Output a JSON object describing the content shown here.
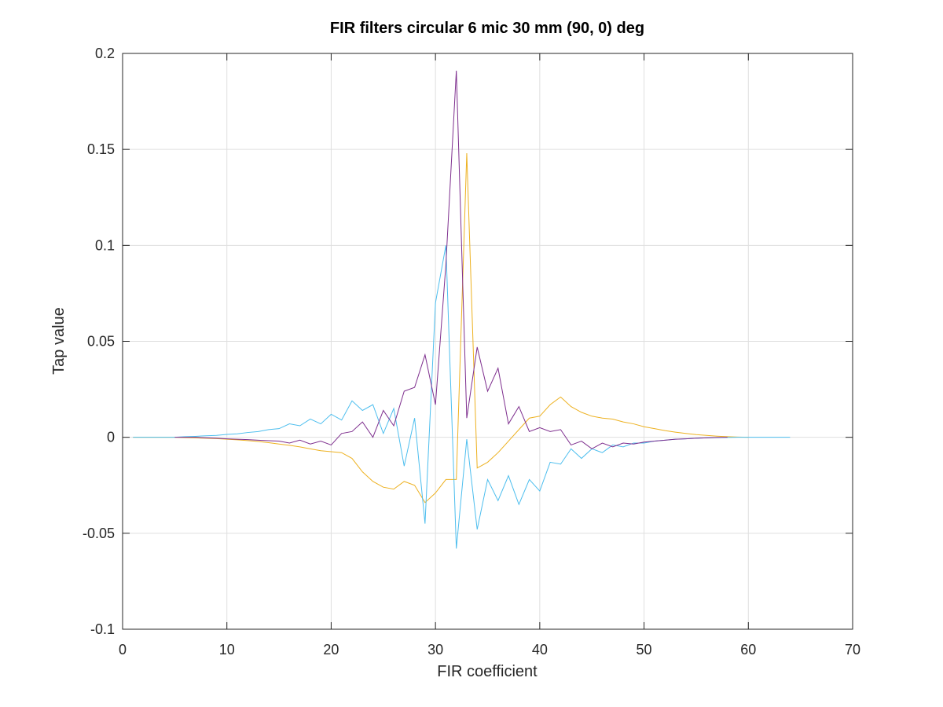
{
  "chart_data": {
    "type": "line",
    "title": "FIR filters circular 6 mic 30 mm (90, 0) deg",
    "xlabel": "FIR coefficient",
    "ylabel": "Tap value",
    "xlim": [
      0,
      70
    ],
    "ylim": [
      -0.1,
      0.2
    ],
    "xticks": [
      0,
      10,
      20,
      30,
      40,
      50,
      60,
      70
    ],
    "xtick_labels": [
      "0",
      "10",
      "20",
      "30",
      "40",
      "50",
      "60",
      "70"
    ],
    "yticks": [
      -0.1,
      -0.05,
      0,
      0.05,
      0.1,
      0.15,
      0.2
    ],
    "ytick_labels": [
      "-0.1",
      "-0.05",
      "0",
      "0.05",
      "0.1",
      "0.15",
      "0.2"
    ],
    "grid": true,
    "series": [
      {
        "color": "#edb120",
        "x": [
          1,
          2,
          3,
          4,
          5,
          6,
          7,
          8,
          9,
          10,
          11,
          12,
          13,
          14,
          15,
          16,
          17,
          18,
          19,
          20,
          21,
          22,
          23,
          24,
          25,
          26,
          27,
          28,
          29,
          30,
          31,
          32,
          33,
          34,
          35,
          36,
          37,
          38,
          39,
          40,
          41,
          42,
          43,
          44,
          45,
          46,
          47,
          48,
          49,
          50,
          51,
          52,
          53,
          54,
          55,
          56,
          57,
          58,
          59,
          60
        ],
        "values": [
          0,
          0,
          0,
          0,
          0,
          -0.0002,
          -0.0003,
          -0.0005,
          -0.0007,
          -0.001,
          -0.0013,
          -0.0017,
          -0.0022,
          -0.0028,
          -0.0035,
          -0.0042,
          -0.005,
          -0.006,
          -0.007,
          -0.0075,
          -0.008,
          -0.011,
          -0.018,
          -0.023,
          -0.026,
          -0.027,
          -0.023,
          -0.025,
          -0.034,
          -0.029,
          -0.022,
          -0.022,
          0.148,
          -0.016,
          -0.013,
          -0.008,
          -0.002,
          0.004,
          0.01,
          0.011,
          0.017,
          0.021,
          0.016,
          0.013,
          0.011,
          0.01,
          0.0095,
          0.008,
          0.007,
          0.0055,
          0.0045,
          0.0035,
          0.0027,
          0.002,
          0.0014,
          0.001,
          0.0006,
          0.0003,
          0.0001,
          0
        ]
      },
      {
        "color": "#4dbeee",
        "x": [
          1,
          2,
          3,
          4,
          5,
          6,
          7,
          8,
          9,
          10,
          11,
          12,
          13,
          14,
          15,
          16,
          17,
          18,
          19,
          20,
          21,
          22,
          23,
          24,
          25,
          26,
          27,
          28,
          29,
          30,
          31,
          32,
          33,
          34,
          35,
          36,
          37,
          38,
          39,
          40,
          41,
          42,
          43,
          44,
          45,
          46,
          47,
          48,
          49,
          50,
          51,
          52,
          53,
          54,
          55,
          56,
          57,
          58,
          59,
          60,
          61,
          62,
          63,
          64
        ],
        "values": [
          0,
          0,
          0,
          0,
          0,
          0.0003,
          0.0005,
          0.0008,
          0.001,
          0.0015,
          0.0018,
          0.0025,
          0.003,
          0.004,
          0.0045,
          0.007,
          0.006,
          0.0095,
          0.007,
          0.012,
          0.009,
          0.019,
          0.014,
          0.017,
          0.002,
          0.015,
          -0.015,
          0.01,
          -0.045,
          0.07,
          0.1,
          -0.058,
          -0.001,
          -0.048,
          -0.022,
          -0.033,
          -0.02,
          -0.035,
          -0.022,
          -0.028,
          -0.013,
          -0.014,
          -0.006,
          -0.011,
          -0.006,
          -0.008,
          -0.004,
          -0.005,
          -0.003,
          -0.003,
          -0.002,
          -0.0015,
          -0.001,
          -0.0008,
          -0.0005,
          -0.0003,
          -0.0002,
          -0.0001,
          0,
          0,
          0,
          0,
          0,
          0
        ]
      },
      {
        "color": "#7e2f8e",
        "x": [
          5,
          6,
          7,
          8,
          9,
          10,
          11,
          12,
          13,
          14,
          15,
          16,
          17,
          18,
          19,
          20,
          21,
          22,
          23,
          24,
          25,
          26,
          27,
          28,
          29,
          30,
          31,
          32,
          33,
          34,
          35,
          36,
          37,
          38,
          39,
          40,
          41,
          42,
          43,
          44,
          45,
          46,
          47,
          48,
          49,
          50,
          51,
          52,
          53,
          54,
          55,
          56,
          57,
          58
        ],
        "values": [
          0,
          0,
          0,
          -0.0003,
          -0.0005,
          -0.0008,
          -0.001,
          -0.0012,
          -0.0015,
          -0.0018,
          -0.002,
          -0.003,
          -0.0015,
          -0.0035,
          -0.002,
          -0.004,
          0.002,
          0.003,
          0.008,
          0.0,
          0.014,
          0.006,
          0.024,
          0.026,
          0.043,
          0.017,
          0.09,
          0.191,
          0.01,
          0.047,
          0.024,
          0.036,
          0.007,
          0.016,
          0.003,
          0.005,
          0.003,
          0.004,
          -0.004,
          -0.002,
          -0.006,
          -0.003,
          -0.005,
          -0.003,
          -0.0035,
          -0.0025,
          -0.002,
          -0.0015,
          -0.001,
          -0.0008,
          -0.0005,
          -0.0003,
          -0.0001,
          0
        ]
      }
    ]
  }
}
